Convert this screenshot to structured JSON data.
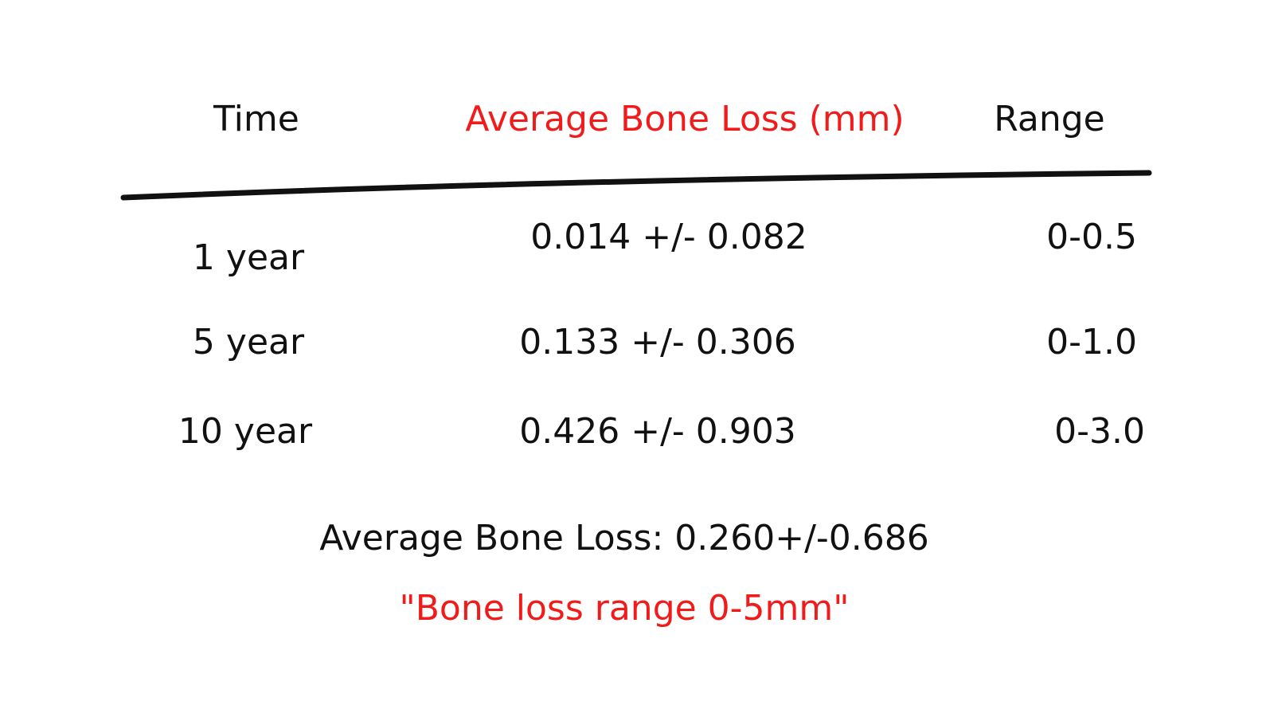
{
  "table": {
    "header": [
      "Time",
      "Average Bone Loss (mm)",
      "Range"
    ],
    "rows": [
      [
        "1 year",
        "0.014 +/- 0.082",
        "0-0.5"
      ],
      [
        "5 year",
        "0.133 +/- 0.306",
        "0-1.0"
      ],
      [
        "10 year",
        "0.426 +/- 0.903",
        "0-3.0"
      ]
    ]
  },
  "summary": "Average Bone Loss: 0.260+/-0.686",
  "note": "\"Bone loss range 0-5mm\""
}
